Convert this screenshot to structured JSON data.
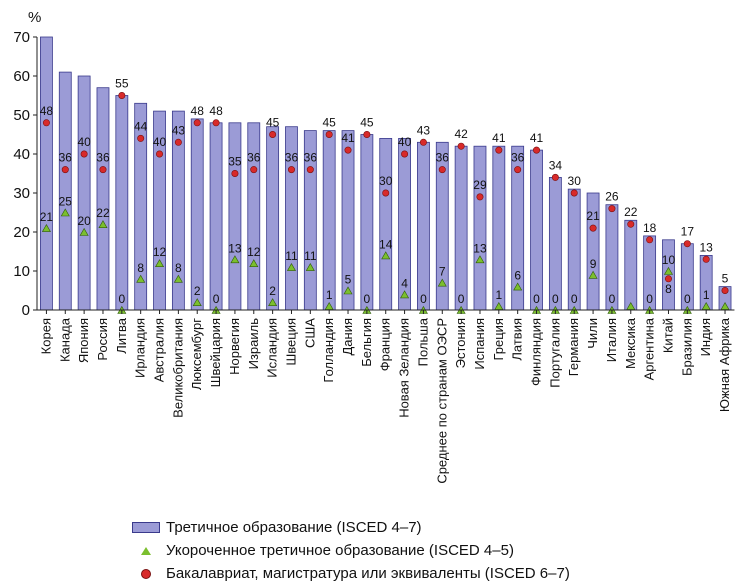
{
  "chart_data": {
    "type": "bar",
    "ylabel": "%",
    "ylim": [
      0,
      70
    ],
    "yticks": [
      0,
      10,
      20,
      30,
      40,
      50,
      60,
      70
    ],
    "categories": [
      "Корея",
      "Канада",
      "Япония",
      "Россия",
      "Литва",
      "Ирландия",
      "Австралия",
      "Великобритания",
      "Люксембург",
      "Швейцария",
      "Норвегия",
      "Израиль",
      "Исландия",
      "Швеция",
      "США",
      "Голландия",
      "Дания",
      "Бельгия",
      "Франция",
      "Новая Зеландия",
      "Польша",
      "Среднее по странам ОЭСР",
      "Эстония",
      "Испания",
      "Греция",
      "Латвия",
      "Финляндия",
      "Португалия",
      "Германия",
      "Чили",
      "Италия",
      "Мексика",
      "Аргентина",
      "Китай",
      "Бразилия",
      "Индия",
      "Южная Африка"
    ],
    "series": [
      {
        "name": "Третичное образование (ISCED 4–7)",
        "values": [
          70,
          61,
          60,
          57,
          55,
          53,
          51,
          51,
          49,
          48,
          48,
          48,
          47,
          47,
          46,
          46,
          46,
          45,
          44,
          44,
          43,
          43,
          42,
          42,
          42,
          42,
          41,
          34,
          31,
          30,
          27,
          23,
          19,
          18,
          17,
          14,
          6
        ]
      },
      {
        "name": "Укороченное третичное образование (ISCED 4–5)",
        "values": [
          21,
          25,
          20,
          22,
          0,
          8,
          12,
          8,
          2,
          0,
          13,
          12,
          2,
          11,
          11,
          1,
          5,
          0,
          14,
          4,
          0,
          7,
          0,
          13,
          1,
          6,
          0,
          0,
          0,
          9,
          0,
          1,
          0,
          10,
          0,
          1,
          1
        ],
        "labels": [
          "21",
          "25",
          "20",
          "22",
          "0",
          "8",
          "12",
          "8",
          "2",
          "0",
          "13",
          "12",
          "2",
          "11",
          "11",
          "1",
          "5",
          "0",
          "14",
          "4",
          "0",
          "7",
          "0",
          "13",
          "1",
          "6",
          "0",
          "0",
          "0",
          "9",
          "0",
          "",
          "0",
          "10",
          "0",
          "1",
          ""
        ]
      },
      {
        "name": "Бакалавриат, магистратура или эквиваленты (ISCED 6–7)",
        "values": [
          48,
          36,
          40,
          36,
          55,
          44,
          40,
          43,
          48,
          48,
          35,
          36,
          45,
          36,
          36,
          45,
          41,
          45,
          30,
          40,
          43,
          36,
          42,
          29,
          41,
          36,
          41,
          34,
          30,
          21,
          26,
          22,
          18,
          8,
          17,
          13,
          5
        ],
        "labels": [
          "48",
          "36",
          "40",
          "36",
          "55",
          "44",
          "40",
          "43",
          "48",
          "48",
          "35",
          "36",
          "45",
          "36",
          "36",
          "45",
          "41",
          "45",
          "30",
          "40",
          "43",
          "36",
          "42",
          "29",
          "41",
          "36",
          "41",
          "34",
          "30",
          "21",
          "26",
          "22",
          "18",
          "8",
          "17",
          "13",
          "5"
        ]
      }
    ],
    "legend": [
      {
        "label": "Третичное образование (ISCED 4–7)",
        "symbol": "bar"
      },
      {
        "label": "Укороченное третичное образование (ISCED 4–5)",
        "symbol": "triangle"
      },
      {
        "label": "Бакалавриат, магистратура или эквиваленты (ISCED 6–7)",
        "symbol": "dot"
      }
    ],
    "legend_position": "bottom",
    "grid": false,
    "colors": {
      "bar_fill": "#9b9bd6",
      "bar_stroke": "#3a3a8c",
      "triangle": "#7bbf2e",
      "dot": "#d82a2a"
    }
  }
}
